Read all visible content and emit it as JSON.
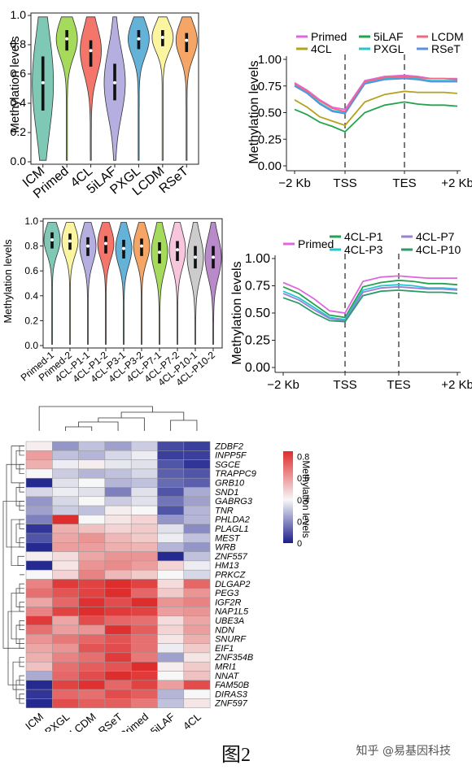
{
  "caption": "图2",
  "watermark": "知乎 @易基因科技",
  "chart_data": [
    {
      "id": "violinA",
      "type": "violin",
      "ylabel": "Methylation levels",
      "yticks": [
        "0.0",
        "0.2",
        "0.4",
        "0.6",
        "0.8",
        "1.0"
      ],
      "ylim": [
        0,
        1
      ],
      "categories": [
        "ICM",
        "Primed",
        "4CL",
        "5iLAF",
        "PXGL",
        "LCDM",
        "RSeT"
      ],
      "colors": [
        "#7ec8b5",
        "#a6da5c",
        "#f4756a",
        "#b5aee0",
        "#65b2d9",
        "#fbf4a0",
        "#f5a565"
      ],
      "medians": [
        0.54,
        0.84,
        0.76,
        0.54,
        0.84,
        0.85,
        0.83
      ],
      "q1": [
        0.35,
        0.76,
        0.65,
        0.42,
        0.77,
        0.79,
        0.75
      ],
      "q3": [
        0.72,
        0.9,
        0.83,
        0.67,
        0.9,
        0.9,
        0.88
      ]
    },
    {
      "id": "lineA",
      "type": "line",
      "ylabel": "Methylation levels",
      "yticks": [
        "0.00",
        "0.25",
        "0.50",
        "0.75",
        "1.00"
      ],
      "ylim": [
        0,
        1
      ],
      "xticks": [
        "−2 Kb",
        "TSS",
        "TES",
        "+2 Kb"
      ],
      "series": [
        {
          "name": "Primed",
          "color": "#e066e0",
          "values": [
            0.78,
            0.71,
            0.62,
            0.55,
            0.53,
            0.8,
            0.84,
            0.85,
            0.84,
            0.82,
            0.82,
            0.82
          ]
        },
        {
          "name": "4CL",
          "color": "#b5a21d",
          "values": [
            0.62,
            0.55,
            0.46,
            0.42,
            0.38,
            0.6,
            0.67,
            0.7,
            0.69,
            0.69,
            0.69,
            0.68
          ]
        },
        {
          "name": "5iLAF",
          "color": "#22a34f",
          "values": [
            0.53,
            0.48,
            0.41,
            0.37,
            0.32,
            0.5,
            0.57,
            0.6,
            0.58,
            0.57,
            0.57,
            0.56
          ]
        },
        {
          "name": "PXGL",
          "color": "#25c7cf",
          "values": [
            0.76,
            0.69,
            0.59,
            0.52,
            0.5,
            0.78,
            0.82,
            0.83,
            0.82,
            0.8,
            0.8,
            0.8
          ]
        },
        {
          "name": "LCDM",
          "color": "#f0687f",
          "values": [
            0.77,
            0.7,
            0.61,
            0.54,
            0.51,
            0.79,
            0.83,
            0.84,
            0.83,
            0.82,
            0.82,
            0.81
          ]
        },
        {
          "name": "RSeT",
          "color": "#5b8fe0",
          "values": [
            0.75,
            0.68,
            0.58,
            0.51,
            0.49,
            0.77,
            0.81,
            0.82,
            0.81,
            0.79,
            0.79,
            0.79
          ]
        }
      ]
    },
    {
      "id": "violinB",
      "type": "violin",
      "ylabel": "Methylation levels",
      "yticks": [
        "0.0",
        "0.2",
        "0.4",
        "0.6",
        "0.8",
        "1.0"
      ],
      "ylim": [
        0,
        1
      ],
      "categories": [
        "Primed-1",
        "Primed-2",
        "4CL-P1-1",
        "4CL-P1-2",
        "4CL-P3-1",
        "4CL-P3-2",
        "4CL-P7-1",
        "4CL-P7-2",
        "4CL-P10-1",
        "4CL-P10-2"
      ],
      "colors": [
        "#7ec8b5",
        "#fbf4a0",
        "#b5aee0",
        "#f4756a",
        "#65b2d9",
        "#f5a565",
        "#a6da5c",
        "#f7c6dd",
        "#cccccc",
        "#b98ac9"
      ],
      "medians": [
        0.85,
        0.84,
        0.8,
        0.82,
        0.78,
        0.8,
        0.75,
        0.77,
        0.71,
        0.71
      ],
      "q1": [
        0.78,
        0.77,
        0.72,
        0.74,
        0.7,
        0.72,
        0.66,
        0.68,
        0.62,
        0.62
      ],
      "q3": [
        0.91,
        0.9,
        0.87,
        0.88,
        0.85,
        0.86,
        0.83,
        0.84,
        0.8,
        0.8
      ]
    },
    {
      "id": "lineB",
      "type": "line",
      "ylabel": "Methylation levels",
      "yticks": [
        "0.00",
        "0.25",
        "0.50",
        "0.75",
        "1.00"
      ],
      "ylim": [
        0,
        1
      ],
      "xticks": [
        "−2 Kb",
        "TSS",
        "TES",
        "+2 Kb"
      ],
      "series": [
        {
          "name": "Primed",
          "color": "#e066e0",
          "values": [
            0.78,
            0.72,
            0.63,
            0.52,
            0.5,
            0.79,
            0.83,
            0.84,
            0.83,
            0.82,
            0.82,
            0.82
          ]
        },
        {
          "name": "4CL-P1",
          "color": "#22a34f",
          "values": [
            0.74,
            0.68,
            0.58,
            0.48,
            0.46,
            0.74,
            0.78,
            0.8,
            0.79,
            0.77,
            0.77,
            0.76
          ]
        },
        {
          "name": "4CL-P3",
          "color": "#25c7cf",
          "values": [
            0.7,
            0.64,
            0.55,
            0.46,
            0.44,
            0.71,
            0.75,
            0.76,
            0.75,
            0.73,
            0.73,
            0.72
          ]
        },
        {
          "name": "4CL-P7",
          "color": "#9b7fd9",
          "values": [
            0.68,
            0.62,
            0.53,
            0.45,
            0.43,
            0.69,
            0.73,
            0.74,
            0.73,
            0.72,
            0.72,
            0.71
          ]
        },
        {
          "name": "4CL-P10",
          "color": "#2c9a6d",
          "values": [
            0.64,
            0.59,
            0.5,
            0.43,
            0.42,
            0.66,
            0.7,
            0.71,
            0.7,
            0.69,
            0.69,
            0.68
          ]
        }
      ]
    },
    {
      "id": "heatmap",
      "type": "heatmap",
      "legend_title": "Methylation levels",
      "legend_ticks": [
        "0",
        "0.2",
        "0.4",
        "0.6",
        "0.8"
      ],
      "columns": [
        "ICM",
        "PXGL",
        "LCDM",
        "RSeT",
        "Primed",
        "5iLAF",
        "4CL"
      ],
      "rows": [
        "ZDBF2",
        "INPP5F",
        "SGCE",
        "TRAPPC9",
        "GRB10",
        "SND1",
        "GABRG3",
        "TNR",
        "PHLDA2",
        "PLAGL1",
        "MEST",
        "WRB",
        "ZNF557",
        "HM13",
        "PRKCZ",
        "DLGAP2",
        "PEG3",
        "IGF2R",
        "NAP1L5",
        "UBE3A",
        "NDN",
        "SNURF",
        "EIF1",
        "ZNF354B",
        "MRI1",
        "NNAT",
        "FAM50B",
        "DIRAS3",
        "ZNF597"
      ],
      "values": [
        [
          0.42,
          0.22,
          0.3,
          0.24,
          0.32,
          0.08,
          0.06
        ],
        [
          0.6,
          0.3,
          0.28,
          0.34,
          0.38,
          0.06,
          0.06
        ],
        [
          0.56,
          0.38,
          0.42,
          0.37,
          0.36,
          0.1,
          0.04
        ],
        [
          0.4,
          0.32,
          0.28,
          0.3,
          0.34,
          0.12,
          0.1
        ],
        [
          0.02,
          0.36,
          0.4,
          0.28,
          0.3,
          0.14,
          0.12
        ],
        [
          0.34,
          0.38,
          0.36,
          0.18,
          0.36,
          0.1,
          0.26
        ],
        [
          0.22,
          0.34,
          0.4,
          0.32,
          0.36,
          0.16,
          0.24
        ],
        [
          0.24,
          0.32,
          0.3,
          0.42,
          0.4,
          0.1,
          0.28
        ],
        [
          0.18,
          0.86,
          0.4,
          0.44,
          0.48,
          0.22,
          0.28
        ],
        [
          0.04,
          0.56,
          0.52,
          0.48,
          0.5,
          0.36,
          0.2
        ],
        [
          0.1,
          0.58,
          0.62,
          0.54,
          0.5,
          0.38,
          0.3
        ],
        [
          0.02,
          0.6,
          0.6,
          0.56,
          0.55,
          0.28,
          0.22
        ],
        [
          0.42,
          0.46,
          0.58,
          0.62,
          0.62,
          0.02,
          0.3
        ],
        [
          0.02,
          0.44,
          0.62,
          0.64,
          0.6,
          0.48,
          0.38
        ],
        [
          0.4,
          0.48,
          0.66,
          0.54,
          0.5,
          0.4,
          0.34
        ],
        [
          0.66,
          0.82,
          0.8,
          0.86,
          0.8,
          0.46,
          0.72
        ],
        [
          0.7,
          0.76,
          0.8,
          0.9,
          0.72,
          0.5,
          0.62
        ],
        [
          0.58,
          0.72,
          0.84,
          0.78,
          0.86,
          0.62,
          0.66
        ],
        [
          0.66,
          0.8,
          0.86,
          0.82,
          0.8,
          0.6,
          0.62
        ],
        [
          0.82,
          0.58,
          0.78,
          0.72,
          0.7,
          0.46,
          0.58
        ],
        [
          0.7,
          0.6,
          0.62,
          0.84,
          0.74,
          0.48,
          0.6
        ],
        [
          0.62,
          0.68,
          0.72,
          0.76,
          0.7,
          0.44,
          0.56
        ],
        [
          0.58,
          0.62,
          0.76,
          0.78,
          0.7,
          0.38,
          0.5
        ],
        [
          0.56,
          0.66,
          0.7,
          0.82,
          0.68,
          0.24,
          0.44
        ],
        [
          0.52,
          0.7,
          0.74,
          0.76,
          0.88,
          0.42,
          0.5
        ],
        [
          0.26,
          0.72,
          0.78,
          0.88,
          0.82,
          0.4,
          0.52
        ],
        [
          0.02,
          0.8,
          0.84,
          0.72,
          0.8,
          0.6,
          0.78
        ],
        [
          0.04,
          0.72,
          0.7,
          0.78,
          0.74,
          0.28,
          0.4
        ],
        [
          0.02,
          0.78,
          0.74,
          0.74,
          0.68,
          0.3,
          0.44
        ]
      ]
    }
  ]
}
